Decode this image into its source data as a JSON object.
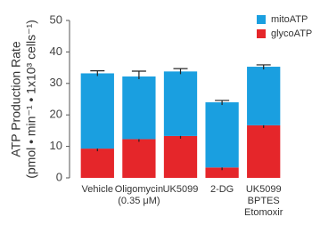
{
  "chart_data": {
    "type": "stacked-bar",
    "y_label": [
      "ATP Production Rate",
      "(pmol • min⁻¹ • 1x10³ cells⁻¹)"
    ],
    "categories": [
      [
        "Vehicle"
      ],
      [
        "Oligomycin",
        "(0.35 μM)"
      ],
      [
        "UK5099"
      ],
      [
        "2-DG"
      ],
      [
        "UK5099",
        "BPTES",
        "Etomoxir"
      ]
    ],
    "series": [
      {
        "name": "glycoATP",
        "color": "#e5262a",
        "values": [
          9.3,
          12.3,
          13.3,
          3.3,
          16.7
        ],
        "errors": [
          0.5,
          1.5,
          1.3,
          0.3,
          1.0
        ]
      },
      {
        "name": "mitoATP",
        "color": "#1a9fe0",
        "values": [
          23.9,
          19.9,
          20.5,
          20.7,
          18.6
        ],
        "errors": [
          0.8,
          1.7,
          0.9,
          0.6,
          0.6
        ]
      }
    ],
    "ylim": [
      0,
      50
    ],
    "yticks": [
      0,
      10,
      20,
      30,
      40,
      50
    ]
  }
}
